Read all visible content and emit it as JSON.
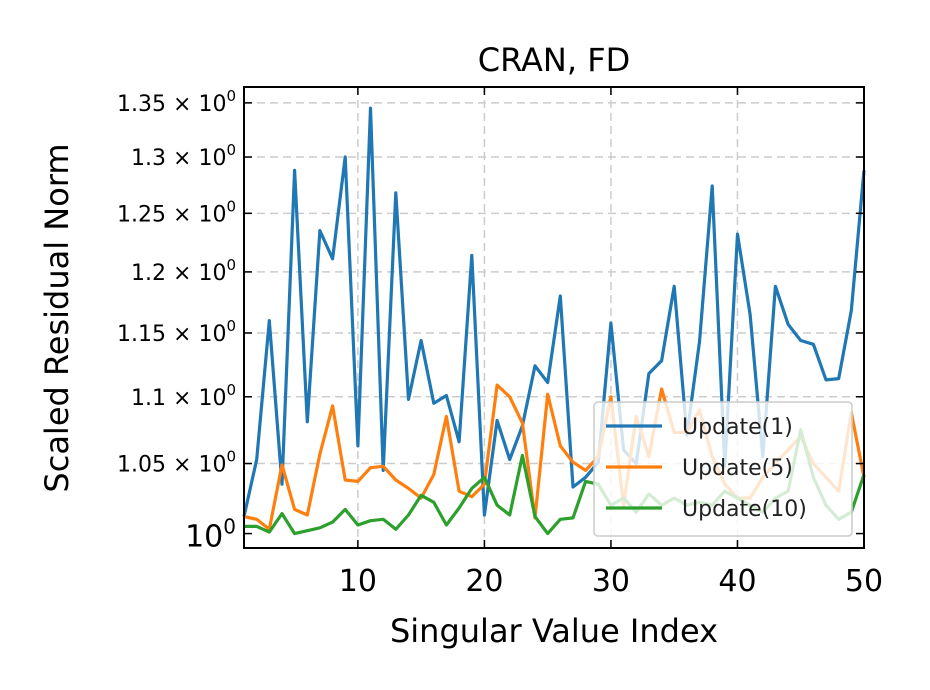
{
  "chart_data": {
    "type": "line",
    "title": "CRAN, FD",
    "xlabel": "Singular Value Index",
    "ylabel": "Scaled Residual Norm",
    "yscale": "log",
    "xlim": [
      1,
      50
    ],
    "ylim": [
      0.99,
      1.365
    ],
    "grid": true,
    "legend_position": "lower-right",
    "x_ticks": [
      10,
      20,
      30,
      40,
      50
    ],
    "x_tick_labels": [
      "10",
      "20",
      "30",
      "40",
      "50"
    ],
    "y_ticks": [
      {
        "value": 1.0,
        "base": "10",
        "exp": "0",
        "mantissa": ""
      },
      {
        "value": 1.05,
        "base": "10",
        "exp": "0",
        "mantissa": "1.05"
      },
      {
        "value": 1.1,
        "base": "10",
        "exp": "0",
        "mantissa": "1.1"
      },
      {
        "value": 1.15,
        "base": "10",
        "exp": "0",
        "mantissa": "1.15"
      },
      {
        "value": 1.2,
        "base": "10",
        "exp": "0",
        "mantissa": "1.2"
      },
      {
        "value": 1.25,
        "base": "10",
        "exp": "0",
        "mantissa": "1.25"
      },
      {
        "value": 1.3,
        "base": "10",
        "exp": "0",
        "mantissa": "1.3"
      },
      {
        "value": 1.35,
        "base": "10",
        "exp": "0",
        "mantissa": "1.35"
      }
    ],
    "x": [
      1,
      2,
      3,
      4,
      5,
      6,
      7,
      8,
      9,
      10,
      11,
      12,
      13,
      14,
      15,
      16,
      17,
      18,
      19,
      20,
      21,
      22,
      23,
      24,
      25,
      26,
      27,
      28,
      29,
      30,
      31,
      32,
      33,
      34,
      35,
      36,
      37,
      38,
      39,
      40,
      41,
      42,
      43,
      44,
      45,
      46,
      47,
      48,
      49,
      50
    ],
    "series": [
      {
        "name": "Update(1)",
        "color": "#1f77b4",
        "values": [
          1.012,
          1.053,
          1.16,
          1.035,
          1.288,
          1.081,
          1.235,
          1.211,
          1.3,
          1.063,
          1.345,
          1.045,
          1.268,
          1.098,
          1.144,
          1.095,
          1.101,
          1.066,
          1.214,
          1.013,
          1.082,
          1.053,
          1.078,
          1.124,
          1.111,
          1.18,
          1.033,
          1.04,
          1.051,
          1.158,
          1.06,
          1.05,
          1.118,
          1.128,
          1.188,
          1.071,
          1.143,
          1.274,
          1.048,
          1.232,
          1.165,
          1.055,
          1.188,
          1.157,
          1.144,
          1.141,
          1.113,
          1.114,
          1.168,
          1.288
        ]
      },
      {
        "name": "Update(5)",
        "color": "#ff7f0e",
        "values": [
          1.012,
          1.01,
          1.003,
          1.049,
          1.017,
          1.013,
          1.057,
          1.093,
          1.038,
          1.037,
          1.047,
          1.048,
          1.038,
          1.032,
          1.025,
          1.042,
          1.085,
          1.03,
          1.026,
          1.035,
          1.109,
          1.1,
          1.08,
          1.011,
          1.102,
          1.063,
          1.051,
          1.045,
          1.055,
          1.1,
          1.02,
          1.085,
          1.055,
          1.106,
          1.073,
          1.073,
          1.09,
          1.055,
          1.035,
          1.025,
          1.025,
          1.04,
          1.05,
          1.06,
          1.07,
          1.05,
          1.04,
          1.03,
          1.088,
          1.04
        ]
      },
      {
        "name": "Update(10)",
        "color": "#2ca02c",
        "values": [
          1.005,
          1.005,
          1.001,
          1.014,
          1.0,
          1.002,
          1.004,
          1.008,
          1.017,
          1.006,
          1.009,
          1.01,
          1.003,
          1.013,
          1.027,
          1.022,
          1.006,
          1.018,
          1.032,
          1.04,
          1.02,
          1.013,
          1.056,
          1.012,
          1.0,
          1.01,
          1.011,
          1.037,
          1.035,
          1.02,
          1.025,
          1.015,
          1.028,
          1.02,
          1.025,
          1.02,
          1.022,
          1.02,
          1.03,
          1.025,
          1.02,
          1.015,
          1.025,
          1.03,
          1.075,
          1.04,
          1.02,
          1.01,
          1.015,
          1.042
        ]
      }
    ]
  }
}
